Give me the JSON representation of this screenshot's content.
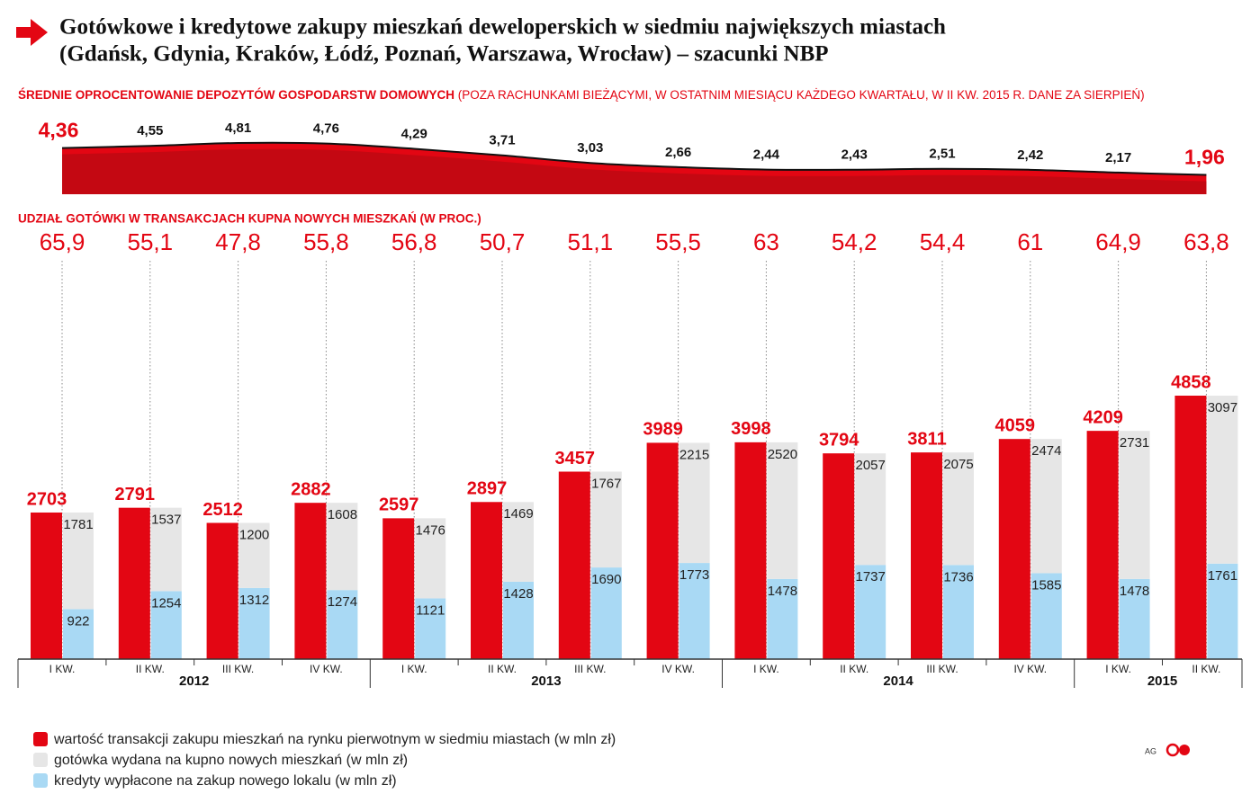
{
  "title": [
    "Gotówkowe i kredytowe zakupy mieszkań deweloperskich w siedmiu największych miastach",
    "(Gdańsk, Gdynia, Kraków, Łódź, Poznań, Warszawa, Wrocław) – szacunki NBP"
  ],
  "source": "AG",
  "chart_data": [
    {
      "type": "area",
      "title": "ŚREDNIE OPROCENTOWANIE DEPOZYTÓW GOSPODARSTW DOMOWYCH",
      "subtitle": "(POZA RACHUNKAMI BIEŻĄCYMI, W OSTATNIM MIESIĄCU KAŻDEGO KWARTAŁU, W II KW. 2015 R. DANE ZA SIERPIEŃ)",
      "color": "#e30613",
      "values": [
        4.36,
        4.55,
        4.81,
        4.76,
        4.29,
        3.71,
        3.03,
        2.66,
        2.44,
        2.43,
        2.51,
        2.42,
        2.17,
        1.96
      ],
      "value_labels": [
        "4,36",
        "4,55",
        "4,81",
        "4,76",
        "4,29",
        "3,71",
        "3,03",
        "2,66",
        "2,44",
        "2,43",
        "2,51",
        "2,42",
        "2,17",
        "1,96"
      ]
    },
    {
      "type": "text",
      "title": "UDZIAŁ GOTÓWKI W TRANSAKCJACH KUPNA NOWYCH MIESZKAŃ (W PROC.)",
      "color": "#e30613",
      "values": [
        65.9,
        55.1,
        47.8,
        55.8,
        56.8,
        50.7,
        51.1,
        55.5,
        63,
        54.2,
        54.4,
        61,
        64.9,
        63.8
      ],
      "value_labels": [
        "65,9",
        "55,1",
        "47,8",
        "55,8",
        "56,8",
        "50,7",
        "51,1",
        "55,5",
        "63",
        "54,2",
        "54,4",
        "61",
        "64,9",
        "63,8"
      ]
    },
    {
      "type": "bar",
      "categories": [
        "I KW.",
        "II KW.",
        "III KW.",
        "IV KW.",
        "I KW.",
        "II KW.",
        "III KW.",
        "IV KW.",
        "I KW.",
        "II KW.",
        "III KW.",
        "IV KW.",
        "I KW.",
        "II KW."
      ],
      "years": [
        "2012",
        "2013",
        "2014",
        "2015"
      ],
      "series": [
        {
          "name": "wartość transakcji zakupu mieszkań na rynku pierwotnym w siedmiu miastach (w mln zł)",
          "color": "#e30613",
          "values": [
            2703,
            2791,
            2512,
            2882,
            2597,
            2897,
            3457,
            3989,
            3998,
            3794,
            3811,
            4059,
            4209,
            4858
          ]
        },
        {
          "name": "gotówka wydana na kupno nowych mieszkań (w mln zł)",
          "color": "#e6e6e6",
          "values": [
            1781,
            1537,
            1200,
            1608,
            1476,
            1469,
            1767,
            2215,
            2520,
            2057,
            2075,
            2474,
            2731,
            3097
          ]
        },
        {
          "name": "kredyty wypłacone na zakup nowego lokalu (w mln zł)",
          "color": "#a9d9f4",
          "values": [
            922,
            1254,
            1312,
            1274,
            1121,
            1428,
            1690,
            1773,
            1478,
            1737,
            1736,
            1585,
            1478,
            1761
          ]
        }
      ]
    }
  ]
}
